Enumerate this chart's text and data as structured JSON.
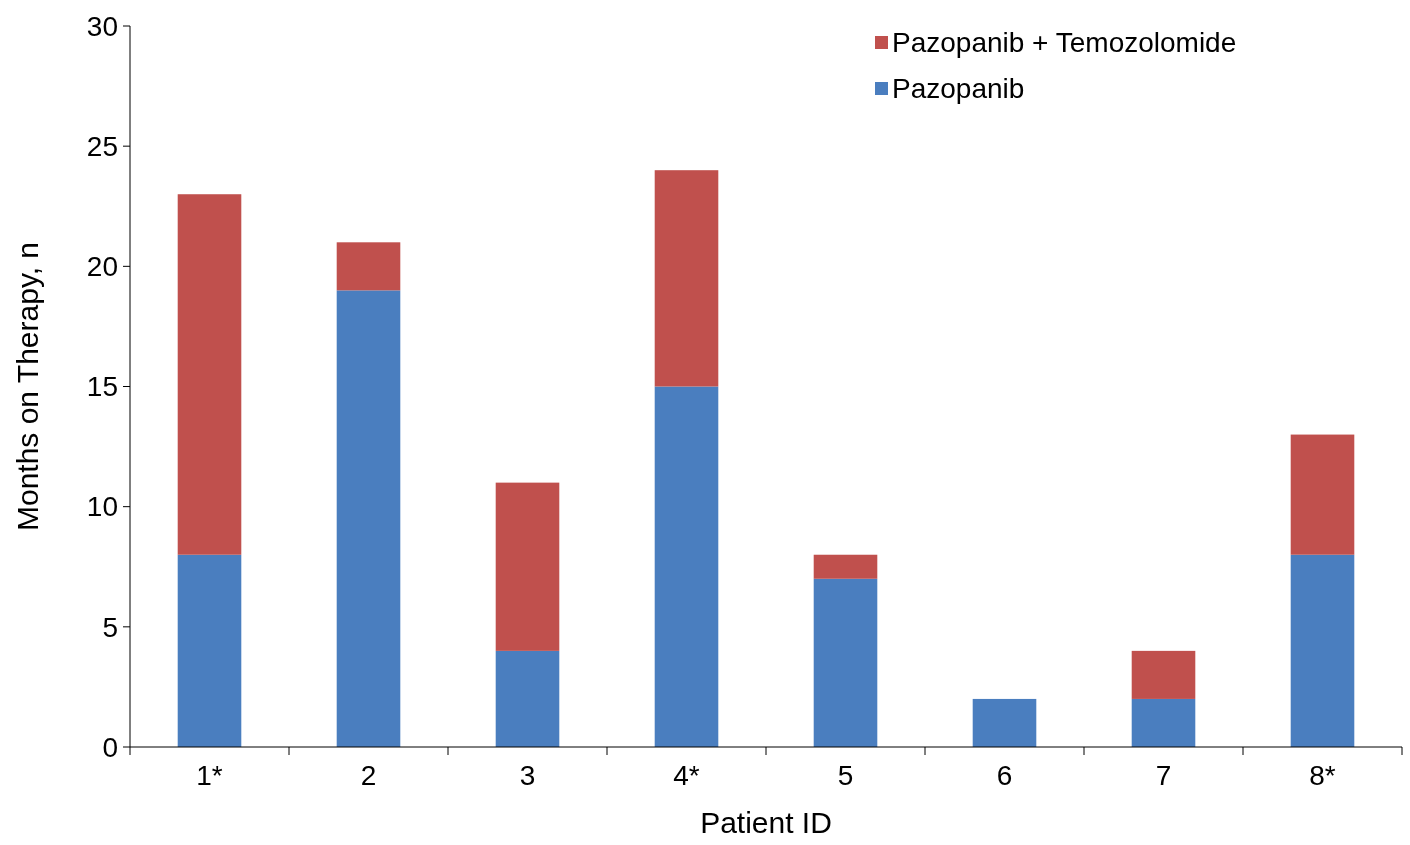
{
  "chart_data": {
    "type": "bar",
    "stacked": true,
    "xlabel": "Patient ID",
    "ylabel": "Months on Therapy, n",
    "categories": [
      "1*",
      "2",
      "3",
      "4*",
      "5",
      "6",
      "7",
      "8*"
    ],
    "series": [
      {
        "name": "Pazopanib",
        "color": "#4a7ebf",
        "values": [
          8,
          19,
          4,
          15,
          7,
          2,
          2,
          8
        ]
      },
      {
        "name": "Pazopanib + Temozolomide",
        "color": "#c0504d",
        "values": [
          15,
          2,
          7,
          9,
          1,
          0,
          2,
          5
        ]
      }
    ],
    "ylim": [
      0,
      30
    ],
    "yticks": [
      0,
      5,
      10,
      15,
      20,
      25,
      30
    ],
    "grid": false,
    "legend": "top right"
  }
}
